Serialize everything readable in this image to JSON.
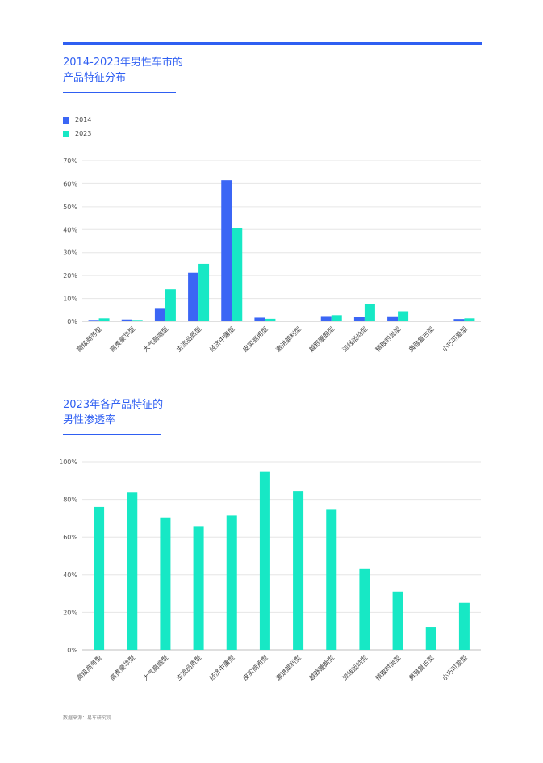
{
  "colors": {
    "accent": "#2f5ff2",
    "series_2014": "#3b66f5",
    "series_2023": "#17e8c5"
  },
  "charts": {
    "top": {
      "title": "2014-2023年男性车市的\n产品特征分布"
    },
    "bottom": {
      "title": "2023年各产品特征的\n男性渗透率"
    }
  },
  "legend": [
    {
      "label": "2014",
      "color": "#3b66f5"
    },
    {
      "label": "2023",
      "color": "#17e8c5"
    }
  ],
  "source": "数据来源：易车研究院",
  "chart_data": [
    {
      "type": "bar",
      "categories": [
        "高级商务型",
        "高贵豪华型",
        "大气高端型",
        "主流品质型",
        "经济中庸型",
        "皮实商用型",
        "激进犀利型",
        "越野硬朗型",
        "流线运动型",
        "精致时尚型",
        "典雅复古型",
        "小巧可爱型"
      ],
      "series": [
        {
          "name": "2014",
          "values": [
            0.6,
            0.8,
            5.5,
            21.2,
            61.5,
            1.6,
            0,
            2.3,
            1.8,
            2.2,
            0,
            1.0
          ]
        },
        {
          "name": "2023",
          "values": [
            1.3,
            0.6,
            14.0,
            25.0,
            40.5,
            1.1,
            0,
            2.7,
            7.4,
            4.4,
            0,
            1.3
          ]
        }
      ],
      "yticks": [
        "0%",
        "10%",
        "20%",
        "30%",
        "40%",
        "50%",
        "60%",
        "70%"
      ],
      "ylim": [
        0,
        70
      ],
      "grid": true,
      "legend_position": "top-left"
    },
    {
      "type": "bar",
      "categories": [
        "高级商务型",
        "高贵豪华型",
        "大气高端型",
        "主流品质型",
        "经济中庸型",
        "皮实商用型",
        "激进犀利型",
        "越野硬朗型",
        "流线运动型",
        "精致时尚型",
        "典雅复古型",
        "小巧可爱型"
      ],
      "values": [
        76,
        84,
        70.5,
        65.5,
        71.5,
        95,
        84.5,
        74.5,
        43,
        31,
        12,
        25
      ],
      "yticks": [
        "0%",
        "20%",
        "40%",
        "60%",
        "80%",
        "100%"
      ],
      "ylim": [
        0,
        100
      ],
      "grid": true
    }
  ]
}
